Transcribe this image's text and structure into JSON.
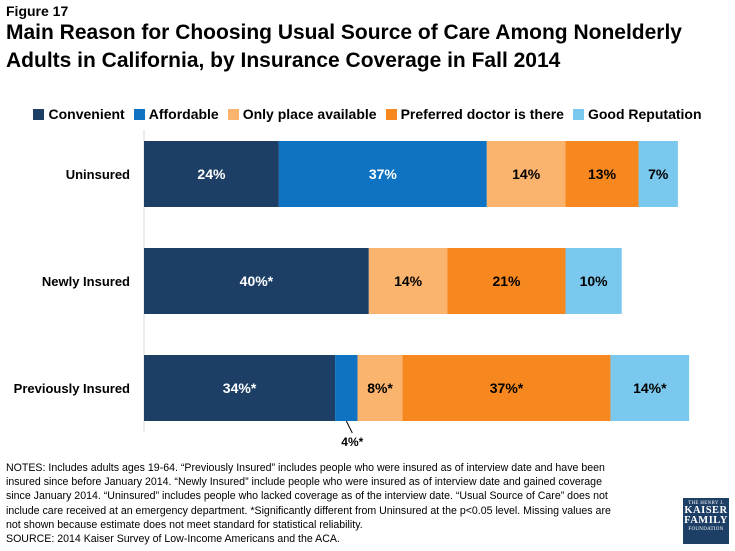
{
  "figure_label": "Figure 17",
  "title": "Main Reason for Choosing Usual Source of Care Among Nonelderly Adults in California, by Insurance Coverage in Fall 2014",
  "notes_lines": [
    "NOTES: Includes adults ages 19-64. “Previously Insured” includes people who were insured as of interview date and have been",
    "insured since before January 2014. “Newly Insured” include people who were insured as of interview date and gained coverage",
    "since January 2014. “Uninsured” includes people who lacked coverage as of the interview date. “Usual Source of Care” does not",
    "include care received at an emergency department. *Significantly different from Uninsured at the p<0.05 level. Missing values are",
    "not shown because estimate does not meet standard for statistical reliability.",
    "SOURCE: 2014 Kaiser Survey of Low-Income Americans and the ACA."
  ],
  "logo": {
    "line1": "THE HENRY J.",
    "line2": "KAISER",
    "line3": "FAMILY",
    "line4": "FOUNDATION"
  },
  "chart_data": {
    "type": "bar",
    "orientation": "horizontal",
    "stacked": true,
    "grid": false,
    "legend_position": "top",
    "xlim": [
      0,
      100
    ],
    "categories": [
      "Uninsured",
      "Newly Insured",
      "Previously Insured"
    ],
    "series": [
      {
        "name": "Convenient",
        "color": "#1d3f66",
        "values": [
          24,
          40,
          34
        ],
        "labels": [
          "24%",
          "40%*",
          "34%*"
        ]
      },
      {
        "name": "Affordable",
        "color": "#0e73c2",
        "values": [
          37,
          null,
          4
        ],
        "labels": [
          "37%",
          "",
          "4%*"
        ]
      },
      {
        "name": "Only place available",
        "color": "#fbb46e",
        "values": [
          14,
          14,
          8
        ],
        "labels": [
          "14%",
          "14%",
          "8%*"
        ]
      },
      {
        "name": "Preferred doctor is there",
        "color": "#f7881f",
        "values": [
          13,
          21,
          37
        ],
        "labels": [
          "13%",
          "21%",
          "37%*"
        ]
      },
      {
        "name": "Good Reputation",
        "color": "#7ac8ee",
        "values": [
          7,
          10,
          14
        ],
        "labels": [
          "7%",
          "10%",
          "14%*"
        ]
      }
    ]
  }
}
